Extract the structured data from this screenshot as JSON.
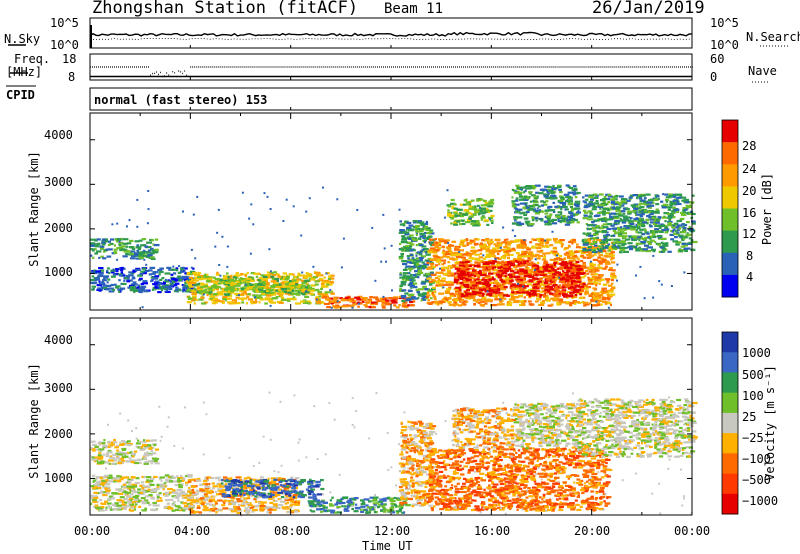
{
  "header": {
    "station": "Zhongshan Station (fitACF)",
    "beam": "Beam 11",
    "date": "26/Jan/2019"
  },
  "top_panels": {
    "nsky_label": "N.Sky",
    "nsky_ticks": [
      "10^5",
      "10^0"
    ],
    "nsearch_label": "N.Search",
    "nsearch_ticks": [
      "10^5",
      "10^0"
    ],
    "freq_label_1": "Freq.",
    "freq_label_2": "[MHz]",
    "freq_ticks": [
      "18",
      "8"
    ],
    "nave_label": "Nave",
    "nave_ticks": [
      "60",
      "0"
    ],
    "cpid_label": "CPID",
    "cpid_value": "normal (fast stereo) 153"
  },
  "chart_data": [
    {
      "type": "heatmap",
      "name": "power-panel",
      "ylabel": "Slant Range [km]",
      "yticks": [
        "4000",
        "3000",
        "2000",
        "1000"
      ],
      "ylim": [
        180,
        4600
      ],
      "colorbar_label": "Power [dB]",
      "colorbar_ticks": [
        "28",
        "24",
        "20",
        "16",
        "12",
        "8",
        "4"
      ],
      "colorbar_colors": [
        "#e60000",
        "#ff6a00",
        "#ff9a00",
        "#f0c800",
        "#6fbf2a",
        "#2e9a4e",
        "#2a62b8",
        "#0000f0"
      ],
      "grid": false,
      "regions": [
        {
          "t0": 0.0,
          "t1": 2.6,
          "r0": 1350,
          "r1": 1800,
          "value": "8"
        },
        {
          "t0": 0.0,
          "t1": 4.2,
          "r0": 600,
          "r1": 1150,
          "value": "4"
        },
        {
          "t0": 3.8,
          "t1": 9.6,
          "r0": 350,
          "r1": 1050,
          "value": "16"
        },
        {
          "t0": 4.2,
          "t1": 8.6,
          "r0": 550,
          "r1": 950,
          "value": "12"
        },
        {
          "t0": 9.2,
          "t1": 12.9,
          "r0": 250,
          "r1": 520,
          "value": "24"
        },
        {
          "t0": 12.3,
          "t1": 13.6,
          "r0": 400,
          "r1": 2200,
          "value": "8"
        },
        {
          "t0": 13.4,
          "t1": 20.8,
          "r0": 300,
          "r1": 1800,
          "value": "20"
        },
        {
          "t0": 14.5,
          "t1": 19.6,
          "r0": 500,
          "r1": 1300,
          "value": "28"
        },
        {
          "t0": 14.2,
          "t1": 16.0,
          "r0": 2100,
          "r1": 2700,
          "value": "12"
        },
        {
          "t0": 16.8,
          "t1": 19.4,
          "r0": 2100,
          "r1": 3000,
          "value": "8"
        },
        {
          "t0": 19.6,
          "t1": 24.0,
          "r0": 1500,
          "r1": 2800,
          "value": "8"
        }
      ]
    },
    {
      "type": "heatmap",
      "name": "velocity-panel",
      "ylabel": "Slant Range [km]",
      "yticks": [
        "4000",
        "3000",
        "2000",
        "1000"
      ],
      "ylim": [
        180,
        4600
      ],
      "colorbar_label": "Velocity [m s⁻¹]",
      "colorbar_ticks": [
        "1000",
        "500",
        "100",
        "25",
        "−25",
        "−100",
        "−500",
        "−1000"
      ],
      "colorbar_colors": [
        "#2039a8",
        "#3a66c4",
        "#2e9a4e",
        "#6fbf2a",
        "#c8c8c0",
        "#ffb000",
        "#ff6a00",
        "#ff3a00",
        "#e60000"
      ],
      "grid": false,
      "regions": [
        {
          "t0": 0.0,
          "t1": 2.6,
          "r0": 1350,
          "r1": 1900,
          "value": "25"
        },
        {
          "t0": 0.0,
          "t1": 4.0,
          "r0": 300,
          "r1": 1100,
          "value": "25"
        },
        {
          "t0": 3.8,
          "t1": 8.2,
          "r0": 250,
          "r1": 1050,
          "value": "-100"
        },
        {
          "t0": 5.2,
          "t1": 9.2,
          "r0": 600,
          "r1": 1000,
          "value": "500"
        },
        {
          "t0": 8.6,
          "t1": 12.6,
          "r0": 250,
          "r1": 600,
          "value": "100"
        },
        {
          "t0": 12.3,
          "t1": 13.6,
          "r0": 400,
          "r1": 2300,
          "value": "-100"
        },
        {
          "t0": 13.4,
          "t1": 20.6,
          "r0": 300,
          "r1": 1700,
          "value": "-500"
        },
        {
          "t0": 14.4,
          "t1": 16.8,
          "r0": 1700,
          "r1": 2600,
          "value": "-100"
        },
        {
          "t0": 16.8,
          "t1": 19.6,
          "r0": 1700,
          "r1": 2700,
          "value": "-25"
        },
        {
          "t0": 19.4,
          "t1": 24.0,
          "r0": 1500,
          "r1": 2800,
          "value": "25"
        }
      ]
    }
  ],
  "xaxis": {
    "label": "Time UT",
    "ticks": [
      "00:00",
      "04:00",
      "08:00",
      "12:00",
      "16:00",
      "20:00",
      "00:00"
    ],
    "xlim": [
      0,
      24
    ]
  }
}
